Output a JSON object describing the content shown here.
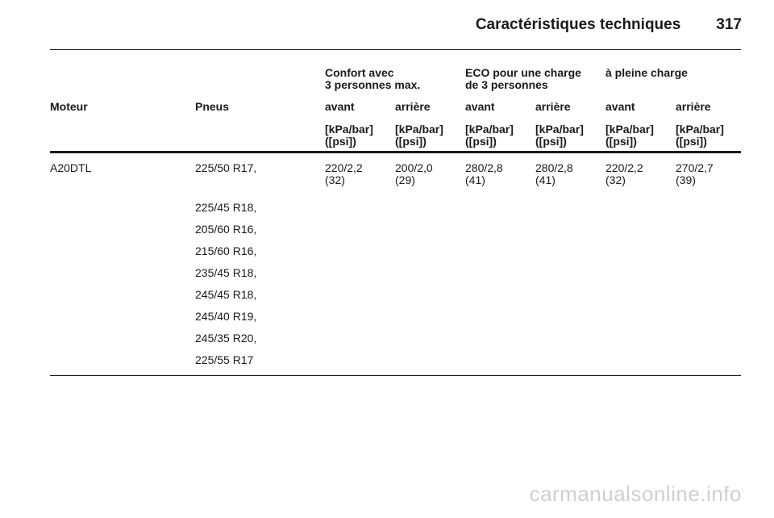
{
  "header": {
    "title": "Caractéristiques techniques",
    "page": "317"
  },
  "groups": [
    {
      "line1": "Confort avec",
      "line2": "3 personnes max."
    },
    {
      "line1": "ECO pour une charge",
      "line2": "de 3 personnes"
    },
    {
      "line1": "à pleine charge",
      "line2": ""
    }
  ],
  "columns": [
    "Moteur",
    "Pneus",
    "avant",
    "arrière",
    "avant",
    "arrière",
    "avant",
    "arrière"
  ],
  "units": {
    "line1": "[kPa/bar]",
    "line2": "([psi])"
  },
  "rows": [
    {
      "engine": "A20DTL",
      "tires": [
        "225/50 R17,",
        "225/45 R18,",
        "205/60 R16,",
        "215/60 R16,",
        "235/45 R18,",
        "245/45 R18,",
        "245/40 R19,",
        "245/35 R20,",
        "225/55 R17"
      ],
      "pressures": [
        {
          "value": "220/2,2",
          "psi": "(32)"
        },
        {
          "value": "200/2,0",
          "psi": "(29)"
        },
        {
          "value": "280/2,8",
          "psi": "(41)"
        },
        {
          "value": "280/2,8",
          "psi": "(41)"
        },
        {
          "value": "220/2,2",
          "psi": "(32)"
        },
        {
          "value": "270/2,7",
          "psi": "(39)"
        }
      ]
    }
  ],
  "watermark": "carmanualsonline.info"
}
